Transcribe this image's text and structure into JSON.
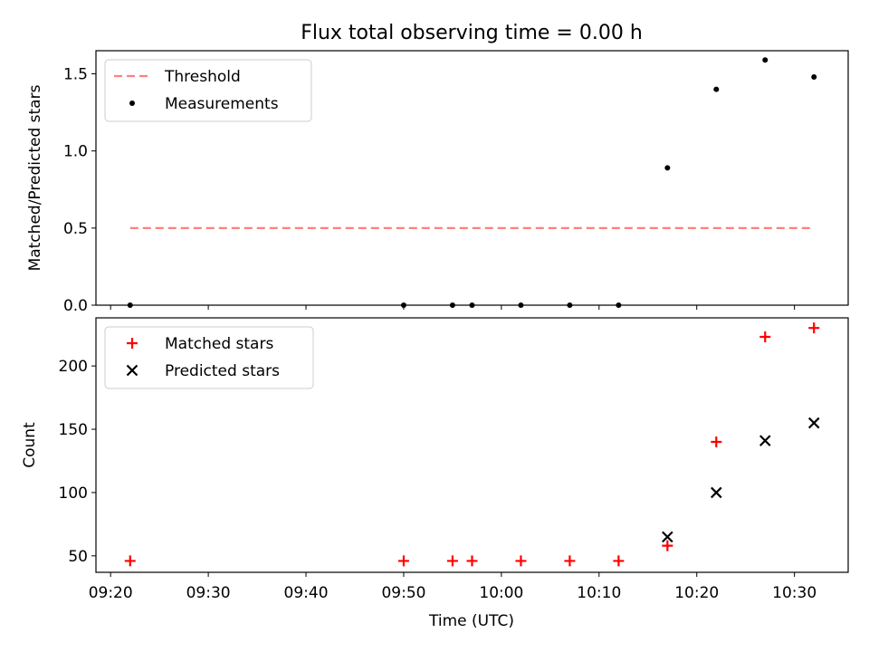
{
  "figure": {
    "title": "Flux total observing time = 0.00 h",
    "xlabel": "Time (UTC)",
    "x_ticks": [
      "09:20",
      "09:30",
      "09:40",
      "09:50",
      "10:00",
      "10:10",
      "10:20",
      "10:30"
    ]
  },
  "chart_data": [
    {
      "type": "scatter",
      "ylabel": "Matched/Predicted stars",
      "x_range": [
        "09:18:30",
        "10:35:30"
      ],
      "ylim": [
        0,
        1.65
      ],
      "y_ticks": [
        "0.0",
        "0.5",
        "1.0",
        "1.5"
      ],
      "grid": false,
      "legend_position": "top-left",
      "threshold": {
        "name": "Threshold",
        "y": 0.5,
        "x_start": "09:22",
        "x_end": "10:32",
        "color": "#ff7f7f"
      },
      "series": [
        {
          "name": "Measurements",
          "color": "#000000",
          "points": [
            {
              "x": "09:22",
              "y": 0.0
            },
            {
              "x": "09:50",
              "y": 0.0
            },
            {
              "x": "09:55",
              "y": 0.0
            },
            {
              "x": "09:57",
              "y": 0.0
            },
            {
              "x": "10:02",
              "y": 0.0
            },
            {
              "x": "10:07",
              "y": 0.0
            },
            {
              "x": "10:12",
              "y": 0.0
            },
            {
              "x": "10:17",
              "y": 0.89
            },
            {
              "x": "10:22",
              "y": 1.4
            },
            {
              "x": "10:27",
              "y": 1.59
            },
            {
              "x": "10:32",
              "y": 1.48
            }
          ]
        }
      ]
    },
    {
      "type": "scatter",
      "ylabel": "Count",
      "x_range": [
        "09:18:30",
        "10:35:30"
      ],
      "ylim": [
        37,
        238
      ],
      "y_ticks": [
        "50",
        "100",
        "150",
        "200"
      ],
      "grid": false,
      "legend_position": "top-left",
      "series": [
        {
          "name": "Matched stars",
          "marker": "plus",
          "color": "#ff0000",
          "points": [
            {
              "x": "09:22",
              "y": 46
            },
            {
              "x": "09:50",
              "y": 46
            },
            {
              "x": "09:55",
              "y": 46
            },
            {
              "x": "09:57",
              "y": 46
            },
            {
              "x": "10:02",
              "y": 46
            },
            {
              "x": "10:07",
              "y": 46
            },
            {
              "x": "10:12",
              "y": 46
            },
            {
              "x": "10:17",
              "y": 58
            },
            {
              "x": "10:22",
              "y": 140
            },
            {
              "x": "10:27",
              "y": 223
            },
            {
              "x": "10:32",
              "y": 230
            }
          ]
        },
        {
          "name": "Predicted stars",
          "marker": "x",
          "color": "#000000",
          "points": [
            {
              "x": "10:17",
              "y": 65
            },
            {
              "x": "10:22",
              "y": 100
            },
            {
              "x": "10:27",
              "y": 141
            },
            {
              "x": "10:32",
              "y": 155
            }
          ]
        }
      ]
    }
  ]
}
